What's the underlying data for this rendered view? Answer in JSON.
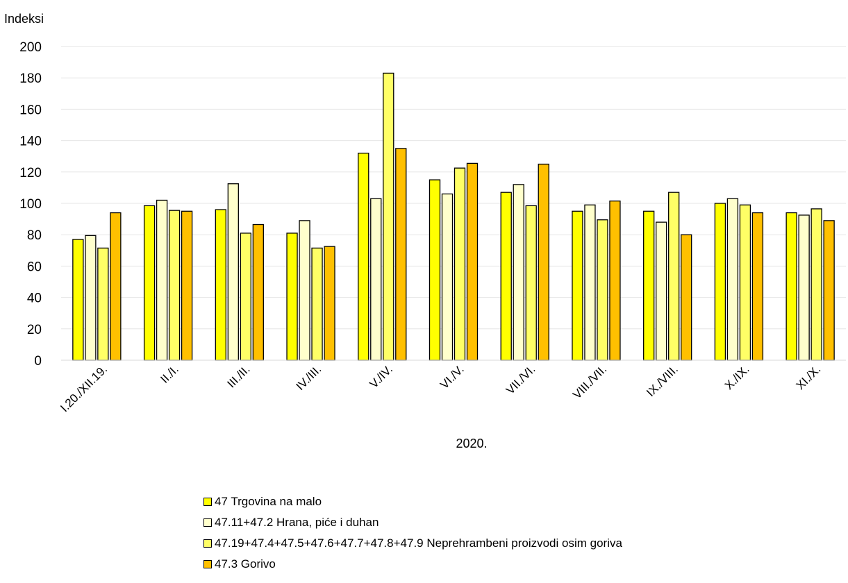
{
  "chart_data": {
    "type": "bar",
    "ylabel": "Indeksi",
    "xlabel": "2020.",
    "ylim": [
      0,
      200
    ],
    "yticks": [
      0,
      20,
      40,
      60,
      80,
      100,
      120,
      140,
      160,
      180,
      200
    ],
    "grid": true,
    "legend_position": "bottom",
    "categories": [
      "I.20./XII.19.",
      "II./I.",
      "III./II.",
      "IV./III.",
      "V./IV.",
      "VI./V.",
      "VII./VI.",
      "VIII./VII.",
      "IX./VIII.",
      "X./IX.",
      "XI./X."
    ],
    "series": [
      {
        "name": "47 Trgovina na malo",
        "color": "#FFFF00",
        "values": [
          77,
          98.5,
          96,
          81,
          132,
          115,
          107,
          95,
          95,
          100,
          94
        ]
      },
      {
        "name": "47.11+47.2 Hrana, piće i duhan",
        "color": "#FFFFCC",
        "values": [
          79.5,
          102,
          112.5,
          89,
          103,
          106,
          112,
          99,
          88,
          103,
          92.5
        ]
      },
      {
        "name": "47.19+47.4+47.5+47.6+47.7+47.8+47.9 Neprehrambeni proizvodi osim goriva",
        "color": "#FFFF66",
        "values": [
          71.5,
          95.5,
          81,
          71.5,
          183,
          122.5,
          98.5,
          89.5,
          107,
          99,
          96.5
        ]
      },
      {
        "name": "47.3 Gorivo",
        "color": "#FFC000",
        "values": [
          94,
          95,
          86.5,
          72.5,
          135,
          125.5,
          125,
          101.5,
          80,
          94,
          89
        ]
      }
    ]
  }
}
